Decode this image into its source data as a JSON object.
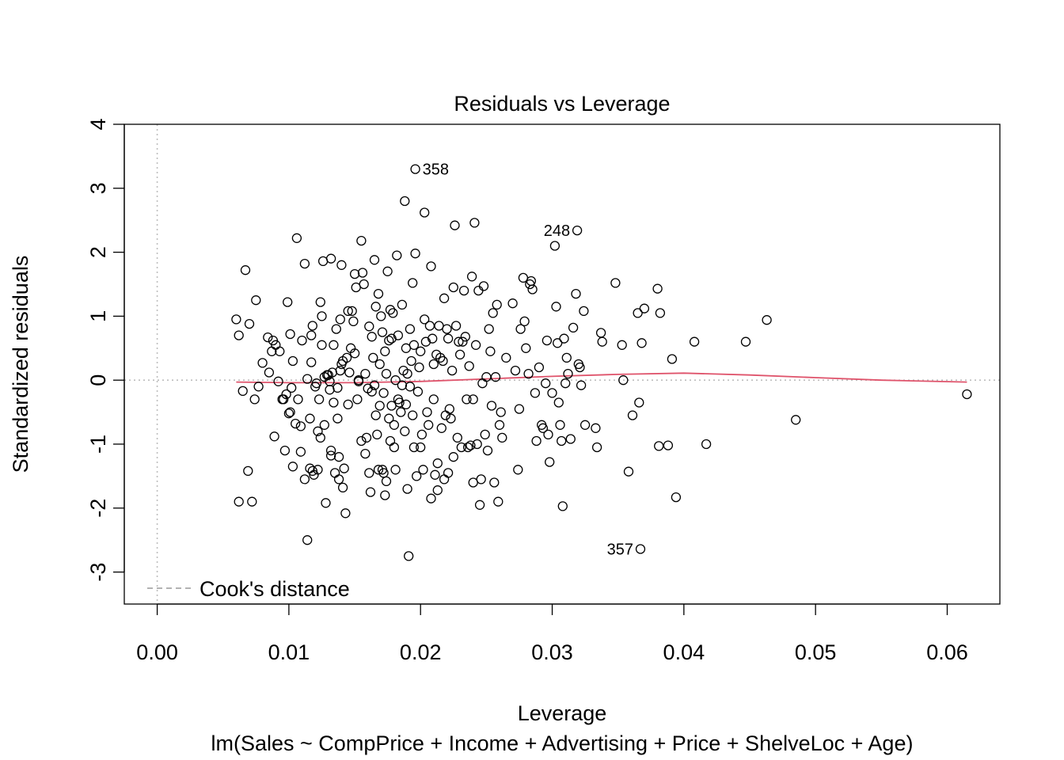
{
  "chart_data": {
    "type": "scatter",
    "title": "Residuals vs Leverage",
    "xlabel": "Leverage",
    "subtitle": "lm(Sales ~ CompPrice + Income + Advertising + Price + ShelveLoc + Age)",
    "ylabel": "Standardized residuals",
    "xlim": [
      -0.0025,
      0.064
    ],
    "ylim": [
      -3.5,
      4.0
    ],
    "x_ticks": [
      0.0,
      0.01,
      0.02,
      0.03,
      0.04,
      0.05,
      0.06
    ],
    "x_tick_labels": [
      "0.00",
      "0.01",
      "0.02",
      "0.03",
      "0.04",
      "0.05",
      "0.06"
    ],
    "y_ticks": [
      -3,
      -2,
      -1,
      0,
      1,
      2,
      3,
      4
    ],
    "y_tick_labels": [
      "-3",
      "-2",
      "-1",
      "0",
      "1",
      "2",
      "3",
      "4"
    ],
    "legend": {
      "label": "Cook's distance",
      "color": "#999999",
      "placement": "bottom-left"
    },
    "colors": {
      "points": "#000000",
      "smooth": "#DF536B",
      "reference": "#BEBEBE",
      "legend_text": "#999999"
    },
    "labeled_points": [
      {
        "label": "358",
        "x": 0.0196,
        "y": 3.3,
        "side": "right"
      },
      {
        "label": "248",
        "x": 0.0319,
        "y": 2.34,
        "side": "left"
      },
      {
        "label": "357",
        "x": 0.0367,
        "y": -2.64,
        "side": "left"
      }
    ],
    "smooth_line": {
      "x": [
        0.006,
        0.01,
        0.015,
        0.02,
        0.025,
        0.03,
        0.035,
        0.04,
        0.045,
        0.05,
        0.055,
        0.0615
      ],
      "y": [
        -0.03,
        -0.04,
        -0.04,
        -0.02,
        0.02,
        0.06,
        0.09,
        0.11,
        0.08,
        0.04,
        0.0,
        -0.03
      ]
    },
    "points": [
      [
        0.006,
        0.95
      ],
      [
        0.0062,
        0.7
      ],
      [
        0.0062,
        -1.9
      ],
      [
        0.0065,
        -0.17
      ],
      [
        0.0067,
        1.72
      ],
      [
        0.0069,
        -1.42
      ],
      [
        0.007,
        0.88
      ],
      [
        0.0072,
        -1.9
      ],
      [
        0.0074,
        -0.3
      ],
      [
        0.0075,
        1.25
      ],
      [
        0.0077,
        -0.1
      ],
      [
        0.008,
        0.27
      ],
      [
        0.0084,
        0.67
      ],
      [
        0.0085,
        0.12
      ],
      [
        0.0087,
        0.45
      ],
      [
        0.0088,
        0.62
      ],
      [
        0.0089,
        -0.88
      ],
      [
        0.009,
        0.55
      ],
      [
        0.0092,
        -0.02
      ],
      [
        0.0093,
        0.45
      ],
      [
        0.0095,
        -0.3
      ],
      [
        0.0096,
        -0.3
      ],
      [
        0.0097,
        -1.1
      ],
      [
        0.0098,
        -0.22
      ],
      [
        0.0099,
        1.22
      ],
      [
        0.01,
        -0.52
      ],
      [
        0.0101,
        0.72
      ],
      [
        0.0101,
        -0.5
      ],
      [
        0.0102,
        -0.12
      ],
      [
        0.0103,
        0.3
      ],
      [
        0.0103,
        -1.35
      ],
      [
        0.0105,
        -0.68
      ],
      [
        0.0106,
        2.22
      ],
      [
        0.0107,
        -0.3
      ],
      [
        0.0109,
        -0.72
      ],
      [
        0.0109,
        -1.12
      ],
      [
        0.011,
        0.62
      ],
      [
        0.0112,
        -1.55
      ],
      [
        0.0112,
        1.82
      ],
      [
        0.0114,
        0.02
      ],
      [
        0.0114,
        -2.5
      ],
      [
        0.0116,
        -1.38
      ],
      [
        0.0116,
        -0.6
      ],
      [
        0.0117,
        0.28
      ],
      [
        0.0117,
        0.7
      ],
      [
        0.0118,
        0.85
      ],
      [
        0.0118,
        -1.42
      ],
      [
        0.0119,
        -1.48
      ],
      [
        0.012,
        -0.1
      ],
      [
        0.0121,
        -0.05
      ],
      [
        0.0122,
        -1.4
      ],
      [
        0.0122,
        -0.8
      ],
      [
        0.0123,
        -0.3
      ],
      [
        0.0124,
        1.22
      ],
      [
        0.0124,
        -0.9
      ],
      [
        0.0125,
        1.0
      ],
      [
        0.0125,
        0.55
      ],
      [
        0.0126,
        1.86
      ],
      [
        0.0127,
        0.05
      ],
      [
        0.0127,
        -0.7
      ],
      [
        0.0128,
        -1.92
      ],
      [
        0.0129,
        0.08
      ],
      [
        0.013,
        0.08
      ],
      [
        0.0131,
        -0.02
      ],
      [
        0.0131,
        -0.15
      ],
      [
        0.0132,
        1.9
      ],
      [
        0.0132,
        -1.1
      ],
      [
        0.0132,
        -1.18
      ],
      [
        0.0133,
        0.12
      ],
      [
        0.0134,
        0.55
      ],
      [
        0.0134,
        -0.35
      ],
      [
        0.0135,
        -1.45
      ],
      [
        0.0136,
        0.8
      ],
      [
        0.0137,
        -0.6
      ],
      [
        0.0137,
        -0.12
      ],
      [
        0.0138,
        -1.2
      ],
      [
        0.0138,
        -1.55
      ],
      [
        0.0139,
        0.95
      ],
      [
        0.0139,
        0.15
      ],
      [
        0.014,
        0.25
      ],
      [
        0.014,
        1.8
      ],
      [
        0.0141,
        -1.68
      ],
      [
        0.0141,
        0.3
      ],
      [
        0.0142,
        -1.38
      ],
      [
        0.0143,
        -2.08
      ],
      [
        0.0144,
        0.35
      ],
      [
        0.0145,
        -0.38
      ],
      [
        0.0145,
        1.08
      ],
      [
        0.0146,
        0.12
      ],
      [
        0.0147,
        0.5
      ],
      [
        0.0148,
        1.08
      ],
      [
        0.0149,
        0.92
      ],
      [
        0.015,
        1.66
      ],
      [
        0.015,
        0.42
      ],
      [
        0.0151,
        1.45
      ],
      [
        0.0152,
        -0.3
      ],
      [
        0.0153,
        -0.02
      ],
      [
        0.0153,
        0.0
      ],
      [
        0.0155,
        2.18
      ],
      [
        0.0155,
        -0.95
      ],
      [
        0.0156,
        1.68
      ],
      [
        0.0157,
        1.5
      ],
      [
        0.0158,
        0.1
      ],
      [
        0.0158,
        -1.15
      ],
      [
        0.0159,
        -0.9
      ],
      [
        0.016,
        -0.13
      ],
      [
        0.0161,
        -1.45
      ],
      [
        0.0161,
        0.84
      ],
      [
        0.0162,
        -1.75
      ],
      [
        0.0163,
        -0.18
      ],
      [
        0.0163,
        0.68
      ],
      [
        0.0164,
        0.35
      ],
      [
        0.0165,
        -0.08
      ],
      [
        0.0165,
        1.88
      ],
      [
        0.0166,
        -0.55
      ],
      [
        0.0166,
        1.15
      ],
      [
        0.0167,
        -0.85
      ],
      [
        0.0168,
        -1.4
      ],
      [
        0.0168,
        1.35
      ],
      [
        0.0169,
        -0.4
      ],
      [
        0.0169,
        0.25
      ],
      [
        0.017,
        1.0
      ],
      [
        0.0171,
        -1.4
      ],
      [
        0.0171,
        0.75
      ],
      [
        0.0172,
        -1.45
      ],
      [
        0.0172,
        -0.2
      ],
      [
        0.0173,
        -1.8
      ],
      [
        0.0173,
        0.45
      ],
      [
        0.0174,
        -1.58
      ],
      [
        0.0174,
        0.1
      ],
      [
        0.0175,
        1.7
      ],
      [
        0.0176,
        -0.6
      ],
      [
        0.0176,
        0.62
      ],
      [
        0.0177,
        1.1
      ],
      [
        0.0177,
        -0.95
      ],
      [
        0.0178,
        0.65
      ],
      [
        0.0178,
        -0.4
      ],
      [
        0.0179,
        1.05
      ],
      [
        0.018,
        -0.7
      ],
      [
        0.018,
        -1.05
      ],
      [
        0.0181,
        -1.4
      ],
      [
        0.0181,
        0.0
      ],
      [
        0.0182,
        1.95
      ],
      [
        0.0183,
        -0.3
      ],
      [
        0.0183,
        0.7
      ],
      [
        0.0184,
        -0.35
      ],
      [
        0.0185,
        -0.5
      ],
      [
        0.0186,
        1.18
      ],
      [
        0.0186,
        -0.08
      ],
      [
        0.0187,
        0.15
      ],
      [
        0.0188,
        -0.8
      ],
      [
        0.0188,
        2.8
      ],
      [
        0.0189,
        -0.38
      ],
      [
        0.0189,
        0.5
      ],
      [
        0.019,
        -1.7
      ],
      [
        0.019,
        0.1
      ],
      [
        0.0191,
        -2.75
      ],
      [
        0.0192,
        0.8
      ],
      [
        0.0192,
        -0.1
      ],
      [
        0.0193,
        0.3
      ],
      [
        0.0194,
        1.52
      ],
      [
        0.0194,
        -0.55
      ],
      [
        0.0195,
        -1.05
      ],
      [
        0.0195,
        0.55
      ],
      [
        0.0196,
        3.3
      ],
      [
        0.0196,
        1.98
      ],
      [
        0.0197,
        -1.5
      ],
      [
        0.0198,
        -0.18
      ],
      [
        0.0199,
        0.2
      ],
      [
        0.02,
        -1.05
      ],
      [
        0.02,
        0.45
      ],
      [
        0.0201,
        -0.85
      ],
      [
        0.0202,
        -1.4
      ],
      [
        0.0203,
        2.62
      ],
      [
        0.0203,
        0.95
      ],
      [
        0.0204,
        0.6
      ],
      [
        0.0205,
        -0.5
      ],
      [
        0.0206,
        -0.7
      ],
      [
        0.0207,
        0.85
      ],
      [
        0.0208,
        -1.85
      ],
      [
        0.0208,
        1.78
      ],
      [
        0.0209,
        0.65
      ],
      [
        0.021,
        0.25
      ],
      [
        0.021,
        -0.3
      ],
      [
        0.0211,
        -1.48
      ],
      [
        0.0212,
        0.4
      ],
      [
        0.0213,
        -1.3
      ],
      [
        0.0213,
        -1.72
      ],
      [
        0.0214,
        0.85
      ],
      [
        0.0215,
        0.35
      ],
      [
        0.0216,
        -0.75
      ],
      [
        0.0217,
        0.3
      ],
      [
        0.0218,
        -1.55
      ],
      [
        0.0218,
        1.28
      ],
      [
        0.0219,
        -0.55
      ],
      [
        0.022,
        0.8
      ],
      [
        0.0221,
        0.65
      ],
      [
        0.0221,
        -1.45
      ],
      [
        0.0222,
        -0.45
      ],
      [
        0.0223,
        -0.6
      ],
      [
        0.0224,
        0.15
      ],
      [
        0.0225,
        -1.2
      ],
      [
        0.0225,
        1.45
      ],
      [
        0.0226,
        2.42
      ],
      [
        0.0227,
        0.85
      ],
      [
        0.0228,
        -0.9
      ],
      [
        0.0229,
        0.6
      ],
      [
        0.023,
        0.4
      ],
      [
        0.0231,
        -1.05
      ],
      [
        0.0232,
        0.6
      ],
      [
        0.0233,
        1.4
      ],
      [
        0.0234,
        0.68
      ],
      [
        0.0235,
        -0.3
      ],
      [
        0.0236,
        -1.05
      ],
      [
        0.0237,
        0.22
      ],
      [
        0.0238,
        -1.02
      ],
      [
        0.0239,
        1.62
      ],
      [
        0.024,
        -1.6
      ],
      [
        0.024,
        -0.3
      ],
      [
        0.0241,
        2.46
      ],
      [
        0.0242,
        0.55
      ],
      [
        0.0243,
        -1.0
      ],
      [
        0.0244,
        1.4
      ],
      [
        0.0245,
        -1.95
      ],
      [
        0.0246,
        -1.55
      ],
      [
        0.0247,
        -0.05
      ],
      [
        0.0248,
        1.47
      ],
      [
        0.0249,
        -0.85
      ],
      [
        0.025,
        0.05
      ],
      [
        0.0251,
        -1.1
      ],
      [
        0.0252,
        0.8
      ],
      [
        0.0253,
        0.45
      ],
      [
        0.0254,
        -0.4
      ],
      [
        0.0255,
        1.05
      ],
      [
        0.0256,
        -1.6
      ],
      [
        0.0257,
        0.05
      ],
      [
        0.0258,
        1.18
      ],
      [
        0.0259,
        -1.9
      ],
      [
        0.026,
        -0.7
      ],
      [
        0.0261,
        -0.5
      ],
      [
        0.0262,
        -0.9
      ],
      [
        0.0265,
        0.35
      ],
      [
        0.027,
        1.2
      ],
      [
        0.0272,
        0.15
      ],
      [
        0.0274,
        -1.4
      ],
      [
        0.0275,
        -0.45
      ],
      [
        0.0276,
        0.8
      ],
      [
        0.0278,
        1.6
      ],
      [
        0.0279,
        0.92
      ],
      [
        0.028,
        0.5
      ],
      [
        0.0282,
        0.1
      ],
      [
        0.0283,
        1.5
      ],
      [
        0.0284,
        1.55
      ],
      [
        0.0285,
        1.42
      ],
      [
        0.0287,
        -0.2
      ],
      [
        0.0288,
        -0.95
      ],
      [
        0.029,
        0.2
      ],
      [
        0.0292,
        -0.7
      ],
      [
        0.0293,
        -0.75
      ],
      [
        0.0295,
        -0.05
      ],
      [
        0.0296,
        0.62
      ],
      [
        0.0297,
        -0.85
      ],
      [
        0.0298,
        -1.28
      ],
      [
        0.03,
        -0.2
      ],
      [
        0.0302,
        2.1
      ],
      [
        0.0303,
        1.15
      ],
      [
        0.0304,
        0.58
      ],
      [
        0.0305,
        -0.35
      ],
      [
        0.0306,
        -0.7
      ],
      [
        0.0307,
        -0.95
      ],
      [
        0.0308,
        -1.97
      ],
      [
        0.0309,
        0.65
      ],
      [
        0.031,
        -0.05
      ],
      [
        0.0311,
        0.35
      ],
      [
        0.0312,
        0.1
      ],
      [
        0.0314,
        -0.92
      ],
      [
        0.0316,
        0.82
      ],
      [
        0.0318,
        1.35
      ],
      [
        0.0319,
        2.34
      ],
      [
        0.032,
        0.25
      ],
      [
        0.0321,
        0.2
      ],
      [
        0.0322,
        -0.08
      ],
      [
        0.0324,
        1.08
      ],
      [
        0.0325,
        -0.7
      ],
      [
        0.0333,
        -0.75
      ],
      [
        0.0334,
        -1.05
      ],
      [
        0.0337,
        0.74
      ],
      [
        0.0338,
        0.6
      ],
      [
        0.0348,
        1.52
      ],
      [
        0.0353,
        0.55
      ],
      [
        0.0354,
        0.0
      ],
      [
        0.0358,
        -1.43
      ],
      [
        0.0361,
        -0.55
      ],
      [
        0.0365,
        1.05
      ],
      [
        0.0366,
        -0.35
      ],
      [
        0.0367,
        -2.64
      ],
      [
        0.0368,
        0.58
      ],
      [
        0.037,
        1.12
      ],
      [
        0.038,
        1.43
      ],
      [
        0.0381,
        -1.03
      ],
      [
        0.0382,
        1.05
      ],
      [
        0.0388,
        -1.02
      ],
      [
        0.0391,
        0.33
      ],
      [
        0.0394,
        -1.83
      ],
      [
        0.0408,
        0.6
      ],
      [
        0.0417,
        -1.0
      ],
      [
        0.0447,
        0.6
      ],
      [
        0.0463,
        0.94
      ],
      [
        0.0485,
        -0.62
      ],
      [
        0.0615,
        -0.22
      ]
    ]
  }
}
